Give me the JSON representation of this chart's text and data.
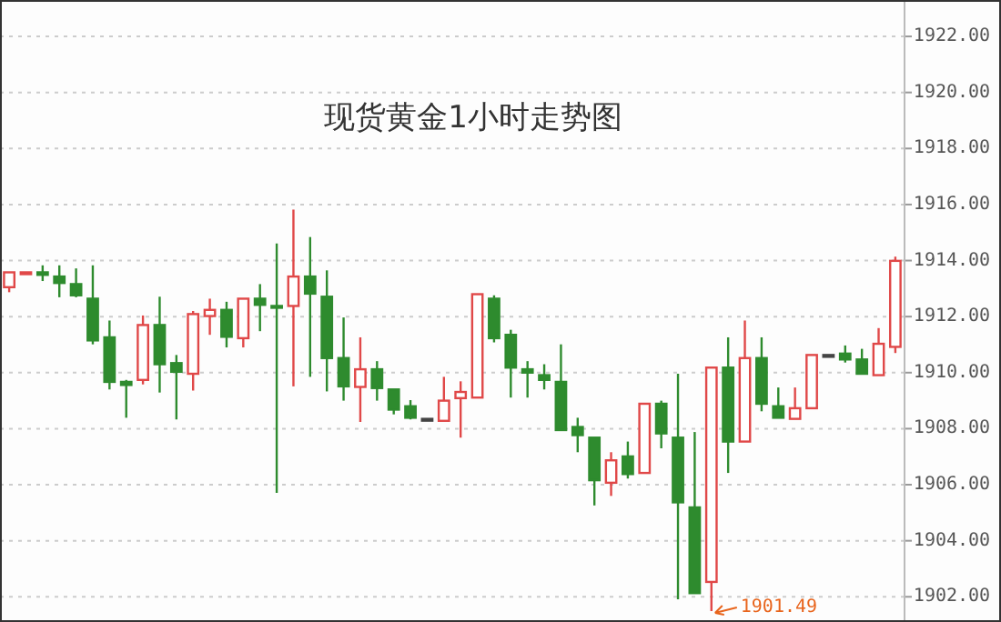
{
  "chart_data": {
    "type": "candlestick",
    "title": "现货黄金1小时走势图",
    "categories": [
      null,
      null,
      null,
      null,
      null,
      null,
      null,
      null,
      null,
      null,
      null,
      null,
      null,
      null,
      null,
      null,
      null,
      null,
      null,
      null,
      null,
      null,
      null,
      null,
      null,
      null,
      null,
      null,
      null,
      null,
      null,
      null,
      null,
      null,
      null,
      null,
      null,
      null,
      null,
      null,
      null,
      null,
      null,
      null,
      null,
      null,
      null,
      null,
      null,
      null,
      null,
      null,
      null,
      null
    ],
    "ohlc": [
      [
        1913.05,
        1913.58,
        1912.87,
        1913.58
      ],
      [
        1913.58,
        1913.58,
        1913.58,
        1913.58
      ],
      [
        1913.58,
        1913.83,
        1913.27,
        1913.49
      ],
      [
        1913.43,
        1913.83,
        1912.69,
        1913.2
      ],
      [
        1913.16,
        1913.72,
        1912.69,
        1912.76
      ],
      [
        1912.64,
        1913.83,
        1911.01,
        1911.15
      ],
      [
        1911.26,
        1911.86,
        1909.4,
        1909.67
      ],
      [
        1909.67,
        1909.74,
        1908.39,
        1909.56
      ],
      [
        1909.74,
        1912.04,
        1909.58,
        1911.7
      ],
      [
        1911.7,
        1912.71,
        1909.29,
        1910.3
      ],
      [
        1910.34,
        1910.63,
        1908.33,
        1910.03
      ],
      [
        1909.96,
        1912.2,
        1909.36,
        1912.09
      ],
      [
        1912.02,
        1912.64,
        1911.35,
        1912.24
      ],
      [
        1912.24,
        1912.53,
        1910.9,
        1911.28
      ],
      [
        1911.23,
        1912.64,
        1910.9,
        1912.64
      ],
      [
        1912.64,
        1913.16,
        1911.48,
        1912.42
      ],
      [
        1912.38,
        1914.61,
        1905.71,
        1912.33
      ],
      [
        1912.38,
        1915.82,
        1909.51,
        1913.43
      ],
      [
        1913.43,
        1914.84,
        1909.85,
        1912.82
      ],
      [
        1912.71,
        1913.65,
        1909.33,
        1910.52
      ],
      [
        1910.52,
        1911.97,
        1909.0,
        1909.51
      ],
      [
        1909.49,
        1911.26,
        1908.24,
        1910.12
      ],
      [
        1910.12,
        1910.41,
        1909.0,
        1909.45
      ],
      [
        1909.4,
        1909.4,
        1908.51,
        1908.68
      ],
      [
        1908.8,
        1909.02,
        1908.33,
        1908.39
      ],
      [
        1908.35,
        1908.35,
        1908.35,
        1908.35
      ],
      [
        1908.28,
        1909.85,
        1908.28,
        1909.0
      ],
      [
        1909.09,
        1909.69,
        1907.68,
        1909.31
      ],
      [
        1909.11,
        1912.8,
        1909.11,
        1912.8
      ],
      [
        1912.64,
        1912.76,
        1911.08,
        1911.23
      ],
      [
        1911.35,
        1911.53,
        1909.11,
        1910.18
      ],
      [
        1910.12,
        1910.41,
        1909.11,
        1910.0
      ],
      [
        1909.91,
        1910.3,
        1909.4,
        1909.74
      ],
      [
        1909.67,
        1911.01,
        1907.95,
        1907.95
      ],
      [
        1908.06,
        1908.39,
        1907.16,
        1907.77
      ],
      [
        1907.68,
        1907.68,
        1905.26,
        1906.16
      ],
      [
        1906.07,
        1907.16,
        1905.6,
        1906.87
      ],
      [
        1907.01,
        1907.54,
        1906.22,
        1906.38
      ],
      [
        1906.42,
        1908.89,
        1906.42,
        1908.89
      ],
      [
        1908.89,
        1909.0,
        1907.3,
        1907.83
      ],
      [
        1907.68,
        1909.96,
        1901.91,
        1905.37
      ],
      [
        1905.19,
        1907.88,
        1902.13,
        1902.13
      ],
      [
        1902.53,
        1910.18,
        1901.49,
        1910.18
      ],
      [
        1910.18,
        1911.26,
        1906.42,
        1907.54
      ],
      [
        1907.54,
        1911.86,
        1907.54,
        1910.52
      ],
      [
        1910.52,
        1911.26,
        1908.62,
        1908.89
      ],
      [
        1908.8,
        1909.47,
        1908.39,
        1908.39
      ],
      [
        1908.35,
        1909.47,
        1908.35,
        1908.73
      ],
      [
        1908.73,
        1910.63,
        1908.73,
        1910.63
      ],
      [
        1910.63,
        1910.63,
        1910.63,
        1910.63
      ],
      [
        1910.68,
        1910.97,
        1910.36,
        1910.47
      ],
      [
        1910.47,
        1910.85,
        1909.96,
        1909.96
      ],
      [
        1909.91,
        1911.59,
        1909.91,
        1911.03
      ],
      [
        1910.92,
        1914.14,
        1910.7,
        1913.99
      ]
    ],
    "colors": [
      "#e04848",
      "#e04848",
      "#2e8b2e",
      "#2e8b2e",
      "#2e8b2e",
      "#2e8b2e",
      "#2e8b2e",
      "#2e8b2e",
      "#e04848",
      "#2e8b2e",
      "#2e8b2e",
      "#e04848",
      "#e04848",
      "#2e8b2e",
      "#e04848",
      "#2e8b2e",
      "#2e8b2e",
      "#e04848",
      "#2e8b2e",
      "#2e8b2e",
      "#2e8b2e",
      "#e04848",
      "#2e8b2e",
      "#2e8b2e",
      "#2e8b2e",
      "#444444",
      "#e04848",
      "#e04848",
      "#e04848",
      "#2e8b2e",
      "#2e8b2e",
      "#2e8b2e",
      "#2e8b2e",
      "#2e8b2e",
      "#2e8b2e",
      "#2e8b2e",
      "#e04848",
      "#2e8b2e",
      "#e04848",
      "#2e8b2e",
      "#2e8b2e",
      "#2e8b2e",
      "#e04848",
      "#2e8b2e",
      "#e04848",
      "#2e8b2e",
      "#2e8b2e",
      "#e04848",
      "#e04848",
      "#444444",
      "#2e8b2e",
      "#2e8b2e",
      "#e04848",
      "#e04848"
    ],
    "ylim": [
      1901.1,
      1923.3
    ],
    "yticks": [
      {
        "value": 1902,
        "label": "1902.00"
      },
      {
        "value": 1904,
        "label": "1904.00"
      },
      {
        "value": 1906,
        "label": "1906.00"
      },
      {
        "value": 1908,
        "label": "1908.00"
      },
      {
        "value": 1910,
        "label": "1910.00"
      },
      {
        "value": 1912,
        "label": "1912.00"
      },
      {
        "value": 1914,
        "label": "1914.00"
      },
      {
        "value": 1916,
        "label": "1916.00"
      },
      {
        "value": 1918,
        "label": "1918.00"
      },
      {
        "value": 1920,
        "label": "1920.00"
      },
      {
        "value": 1922,
        "label": "1922.00"
      }
    ],
    "grid": "y",
    "annotations": [
      "1901.49"
    ]
  }
}
